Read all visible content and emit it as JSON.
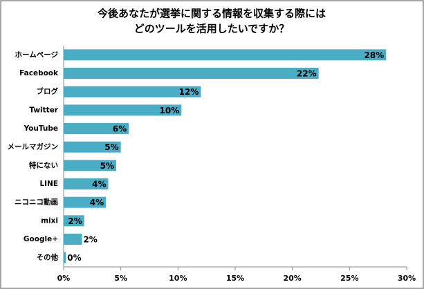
{
  "chart_data": {
    "type": "barh",
    "title": [
      "今後あなたが選挙に関する情報を収集する際には",
      "どのツールを活用したいですか？"
    ],
    "categories": [
      "ホームページ",
      "Facebook",
      "ブログ",
      "Twitter",
      "YouTube",
      "メールマガジン",
      "特にない",
      "LINE",
      "ニコニコ動画",
      "mixi",
      "Google+",
      "その他"
    ],
    "values": [
      28.2,
      22.3,
      12.0,
      10.3,
      5.7,
      5.0,
      4.6,
      3.9,
      3.7,
      1.8,
      1.6,
      0.2
    ],
    "value_labels": [
      "28%",
      "22%",
      "12%",
      "10%",
      "6%",
      "5%",
      "5%",
      "4%",
      "4%",
      "2%",
      "2%",
      "0%"
    ],
    "color": "#4bacc6",
    "xlim": [
      0,
      30
    ],
    "xticks": [
      {
        "value": 0,
        "label": "0%"
      },
      {
        "value": 5,
        "label": "5%"
      },
      {
        "value": 10,
        "label": "10%"
      },
      {
        "value": 15,
        "label": "15%"
      },
      {
        "value": 20,
        "label": "20%"
      },
      {
        "value": 25,
        "label": "25%"
      },
      {
        "value": 30,
        "label": "30%"
      }
    ],
    "grid": false
  }
}
